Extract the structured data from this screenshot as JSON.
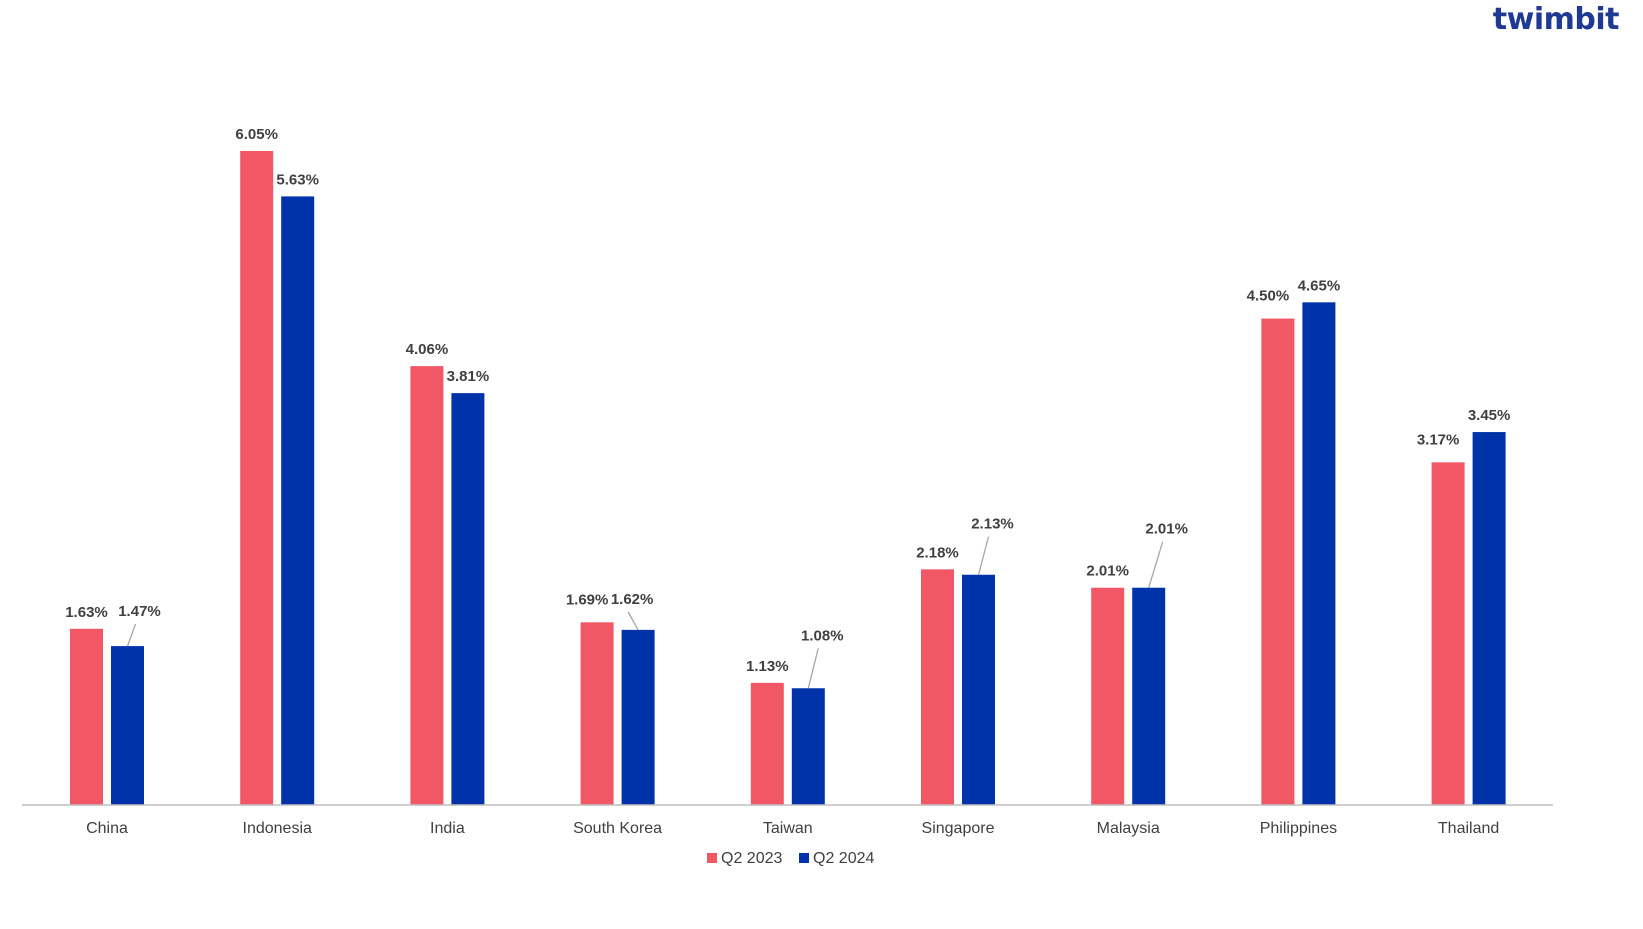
{
  "brand": {
    "logo_text": "twimbit"
  },
  "colors": {
    "series_2023": "#f25766",
    "series_2024": "#0033aa",
    "axis": "#bfbfbf",
    "text": "#404040"
  },
  "chart_data": {
    "type": "bar",
    "title": "",
    "xlabel": "",
    "ylabel": "",
    "ylim": [
      0,
      6.5
    ],
    "grid": false,
    "legend_position": "bottom",
    "categories": [
      "China",
      "Indonesia",
      "India",
      "South Korea",
      "Taiwan",
      "Singapore",
      "Malaysia",
      "Philippines",
      "Thailand"
    ],
    "series": [
      {
        "name": "Q2 2023",
        "values": [
          1.63,
          6.05,
          4.06,
          1.69,
          1.13,
          2.18,
          2.01,
          4.5,
          3.17
        ],
        "labels": [
          "1.63%",
          "6.05%",
          "4.06%",
          "1.69%",
          "1.13%",
          "2.18%",
          "2.01%",
          "4.50%",
          "3.17%"
        ]
      },
      {
        "name": "Q2 2024",
        "values": [
          1.47,
          5.63,
          3.81,
          1.62,
          1.08,
          2.13,
          2.01,
          4.65,
          3.45
        ],
        "labels": [
          "1.47%",
          "5.63%",
          "3.81%",
          "1.62%",
          "1.08%",
          "2.13%",
          "2.01%",
          "4.65%",
          "3.45%"
        ]
      }
    ]
  }
}
